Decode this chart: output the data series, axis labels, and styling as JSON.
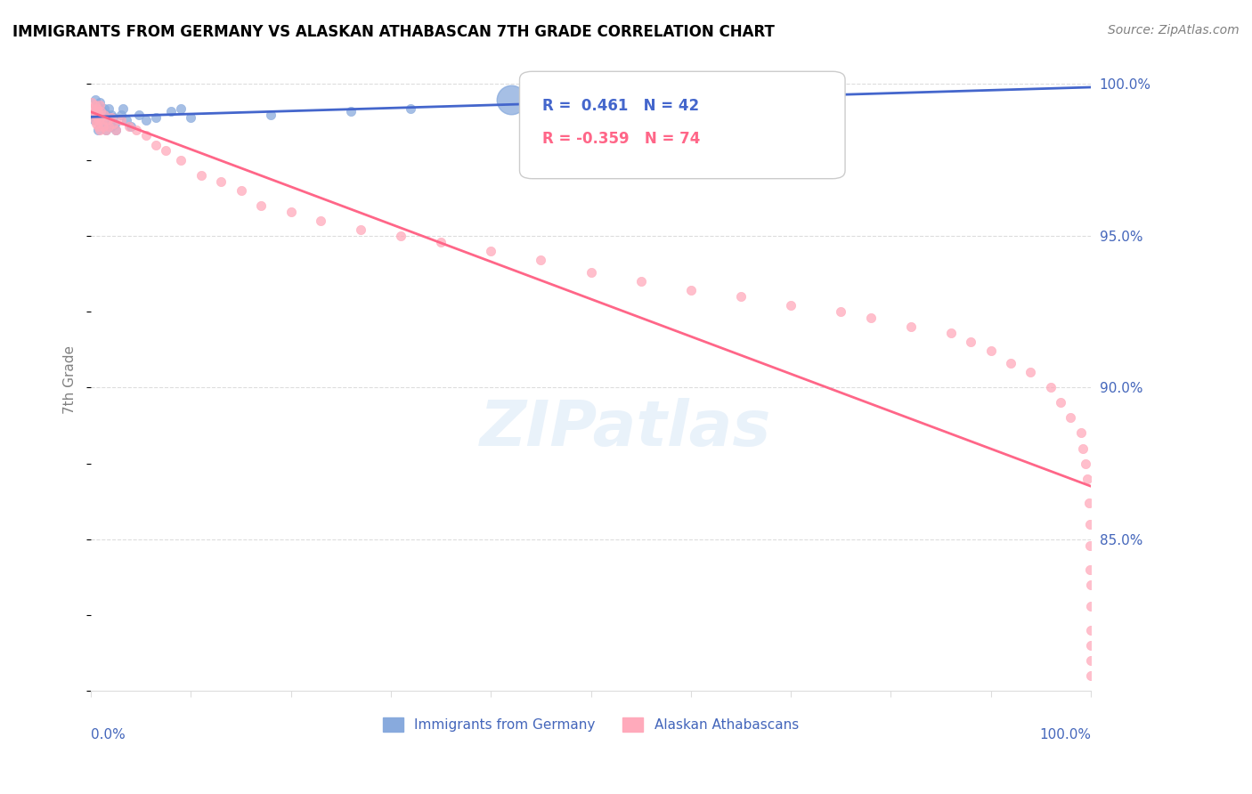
{
  "title": "IMMIGRANTS FROM GERMANY VS ALASKAN ATHABASCAN 7TH GRADE CORRELATION CHART",
  "source": "Source: ZipAtlas.com",
  "legend_blue_label": "Immigrants from Germany",
  "legend_pink_label": "Alaskan Athabascans",
  "ylabel": "7th Grade",
  "R_blue": 0.461,
  "N_blue": 42,
  "R_pink": -0.359,
  "N_pink": 74,
  "blue_color": "#88AADD",
  "pink_color": "#FFAABB",
  "blue_line_color": "#4466CC",
  "pink_line_color": "#FF6688",
  "blue_points_x": [
    0.002,
    0.003,
    0.004,
    0.005,
    0.005,
    0.006,
    0.006,
    0.007,
    0.007,
    0.008,
    0.008,
    0.009,
    0.009,
    0.01,
    0.01,
    0.011,
    0.012,
    0.013,
    0.013,
    0.015,
    0.016,
    0.017,
    0.018,
    0.02,
    0.02,
    0.022,
    0.024,
    0.025,
    0.03,
    0.032,
    0.035,
    0.04,
    0.048,
    0.055,
    0.065,
    0.08,
    0.09,
    0.1,
    0.18,
    0.26,
    0.32,
    0.42
  ],
  "blue_points_y": [
    0.99,
    0.988,
    0.995,
    0.992,
    0.988,
    0.993,
    0.99,
    0.991,
    0.985,
    0.989,
    0.992,
    0.994,
    0.987,
    0.99,
    0.988,
    0.991,
    0.989,
    0.987,
    0.992,
    0.985,
    0.99,
    0.988,
    0.992,
    0.99,
    0.986,
    0.989,
    0.987,
    0.985,
    0.99,
    0.992,
    0.988,
    0.986,
    0.99,
    0.988,
    0.989,
    0.991,
    0.992,
    0.989,
    0.99,
    0.991,
    0.992,
    0.995
  ],
  "blue_large_idx": 41,
  "pink_points_x": [
    0.001,
    0.002,
    0.003,
    0.004,
    0.004,
    0.005,
    0.005,
    0.006,
    0.006,
    0.007,
    0.007,
    0.008,
    0.008,
    0.009,
    0.009,
    0.01,
    0.01,
    0.011,
    0.012,
    0.013,
    0.015,
    0.016,
    0.018,
    0.02,
    0.022,
    0.025,
    0.03,
    0.038,
    0.045,
    0.055,
    0.065,
    0.075,
    0.09,
    0.11,
    0.13,
    0.15,
    0.17,
    0.2,
    0.23,
    0.27,
    0.31,
    0.35,
    0.4,
    0.45,
    0.5,
    0.55,
    0.6,
    0.65,
    0.7,
    0.75,
    0.78,
    0.82,
    0.86,
    0.88,
    0.9,
    0.92,
    0.94,
    0.96,
    0.97,
    0.98,
    0.99,
    0.992,
    0.995,
    0.997,
    0.998,
    0.999,
    0.999,
    0.999,
    1.0,
    1.0,
    1.0,
    1.0,
    1.0,
    1.0
  ],
  "pink_points_y": [
    0.994,
    0.992,
    0.991,
    0.988,
    0.993,
    0.99,
    0.987,
    0.992,
    0.989,
    0.991,
    0.986,
    0.99,
    0.988,
    0.993,
    0.985,
    0.989,
    0.991,
    0.988,
    0.986,
    0.99,
    0.985,
    0.988,
    0.986,
    0.989,
    0.987,
    0.985,
    0.988,
    0.986,
    0.985,
    0.983,
    0.98,
    0.978,
    0.975,
    0.97,
    0.968,
    0.965,
    0.96,
    0.958,
    0.955,
    0.952,
    0.95,
    0.948,
    0.945,
    0.942,
    0.938,
    0.935,
    0.932,
    0.93,
    0.927,
    0.925,
    0.923,
    0.92,
    0.918,
    0.915,
    0.912,
    0.908,
    0.905,
    0.9,
    0.895,
    0.89,
    0.885,
    0.88,
    0.875,
    0.87,
    0.862,
    0.855,
    0.848,
    0.84,
    0.835,
    0.828,
    0.82,
    0.815,
    0.81,
    0.805
  ],
  "xlim": [
    0.0,
    1.0
  ],
  "ylim": [
    0.8,
    1.005
  ],
  "yticks": [
    0.85,
    0.9,
    0.95,
    1.0
  ],
  "ytick_labels": [
    "85.0%",
    "90.0%",
    "95.0%",
    "100.0%"
  ],
  "xtick_labels_left": "0.0%",
  "xtick_labels_right": "100.0%",
  "axis_label_color": "#4466BB",
  "grid_color": "#DDDDDD",
  "watermark_text": "ZIPatlas",
  "watermark_color": "#AACCEE",
  "watermark_alpha": 0.25
}
